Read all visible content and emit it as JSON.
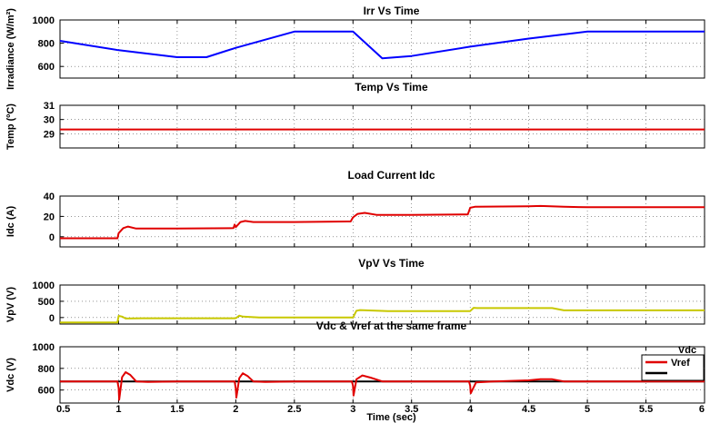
{
  "chart_data": [
    {
      "type": "line",
      "title": "Irr Vs Time",
      "ylabel": "Irradiance (W/m²)",
      "ylim": [
        500,
        1000
      ],
      "yticks": [
        600,
        800,
        1000
      ],
      "xlim": [
        0.5,
        6
      ],
      "grid": true,
      "series": [
        {
          "color": "#0000ff",
          "x": [
            0.5,
            1.0,
            1.5,
            1.75,
            2.0,
            2.5,
            3.0,
            3.25,
            3.5,
            4.0,
            4.5,
            5.0,
            5.5,
            6.0
          ],
          "y": [
            820,
            740,
            680,
            680,
            760,
            900,
            900,
            670,
            690,
            770,
            840,
            900,
            900,
            900
          ]
        }
      ]
    },
    {
      "type": "line",
      "title": "Temp Vs Time",
      "ylabel": "Temp (ºC)",
      "ylim": [
        28,
        31
      ],
      "yticks": [
        29,
        30,
        31
      ],
      "xlim": [
        0.5,
        6
      ],
      "grid": true,
      "series": [
        {
          "color": "#e00000",
          "x": [
            0.5,
            6.0
          ],
          "y": [
            29.3,
            29.3
          ]
        }
      ]
    },
    {
      "type": "line",
      "title": "Load Current Idc",
      "ylabel": "Idc (A)",
      "ylim": [
        -10,
        40
      ],
      "yticks": [
        0,
        20,
        40
      ],
      "xlim": [
        0.5,
        6
      ],
      "grid": true,
      "series": [
        {
          "color": "#e00000",
          "x": [
            0.5,
            0.99,
            1.0,
            1.04,
            1.08,
            1.15,
            1.5,
            1.98,
            1.99,
            2.0,
            2.04,
            2.08,
            2.15,
            2.5,
            2.98,
            3.0,
            3.04,
            3.1,
            3.2,
            3.5,
            3.98,
            4.0,
            4.04,
            4.5,
            4.6,
            4.8,
            5.0,
            5.5,
            6.0
          ],
          "y": [
            -1.5,
            -1.5,
            3.5,
            8.5,
            10.0,
            8.0,
            8.0,
            8.5,
            12.0,
            9.5,
            14.5,
            15.5,
            14.5,
            14.5,
            15.0,
            19.0,
            22.5,
            23.5,
            21.5,
            21.5,
            22.0,
            28.5,
            29.5,
            30.0,
            30.3,
            29.5,
            29.0,
            29.0,
            29.0
          ]
        }
      ]
    },
    {
      "type": "line",
      "title": "VpV Vs Time",
      "ylabel": "VpV (V)",
      "ylim": [
        -200,
        1000
      ],
      "yticks": [
        0,
        500,
        1000
      ],
      "xlim": [
        0.5,
        6
      ],
      "grid": true,
      "series": [
        {
          "color": "#c8c800",
          "x": [
            0.5,
            0.99,
            1.0,
            1.03,
            1.06,
            1.2,
            1.5,
            2.0,
            2.03,
            2.06,
            2.2,
            2.5,
            3.0,
            3.03,
            3.06,
            3.3,
            3.5,
            4.0,
            4.03,
            4.06,
            4.3,
            4.5,
            4.7,
            4.8,
            5.0,
            5.5,
            6.0
          ],
          "y": [
            -150,
            -150,
            50,
            30,
            -30,
            -20,
            -20,
            -20,
            60,
            30,
            0,
            0,
            0,
            210,
            230,
            200,
            200,
            200,
            300,
            290,
            290,
            290,
            290,
            220,
            220,
            220,
            220
          ]
        }
      ]
    },
    {
      "type": "line",
      "title": "Vdc & Vref at the same frame",
      "ylabel": "Vdc (V)",
      "ylim": [
        480,
        1000
      ],
      "yticks": [
        600,
        800,
        1000
      ],
      "xlim": [
        0.5,
        6
      ],
      "xticks": [
        0.5,
        1,
        1.5,
        2,
        2.5,
        3,
        3.5,
        4,
        4.5,
        5,
        5.5,
        6
      ],
      "xticklabels": [
        "0.5",
        "1",
        "1.5",
        "2",
        "2.5",
        "3",
        "3.5",
        "4",
        "4.5",
        "5",
        "5.5",
        "6"
      ],
      "xlabel": "Time (sec)",
      "grid": true,
      "legend_title": "Vdc",
      "legend_position": "top-right",
      "series": [
        {
          "name": "Vref",
          "color": "#e00000",
          "x": [
            0.5,
            0.99,
            1.0,
            1.005,
            1.03,
            1.06,
            1.1,
            1.15,
            1.25,
            1.5,
            1.99,
            2.0,
            2.005,
            2.03,
            2.06,
            2.1,
            2.15,
            2.25,
            2.5,
            2.99,
            3.0,
            3.005,
            3.03,
            3.08,
            3.15,
            3.25,
            3.5,
            3.99,
            4.0,
            4.005,
            4.05,
            4.2,
            4.5,
            4.6,
            4.7,
            4.8,
            5.0,
            6.0
          ],
          "y": [
            680,
            680,
            620,
            510,
            720,
            765,
            740,
            680,
            675,
            680,
            680,
            610,
            530,
            710,
            755,
            730,
            680,
            675,
            680,
            680,
            640,
            550,
            700,
            735,
            715,
            680,
            680,
            680,
            640,
            570,
            670,
            680,
            690,
            700,
            700,
            680,
            680,
            680
          ]
        },
        {
          "name": "",
          "color": "#000000",
          "x": [
            0.5,
            6.0
          ],
          "y": [
            680,
            680
          ]
        }
      ]
    }
  ]
}
